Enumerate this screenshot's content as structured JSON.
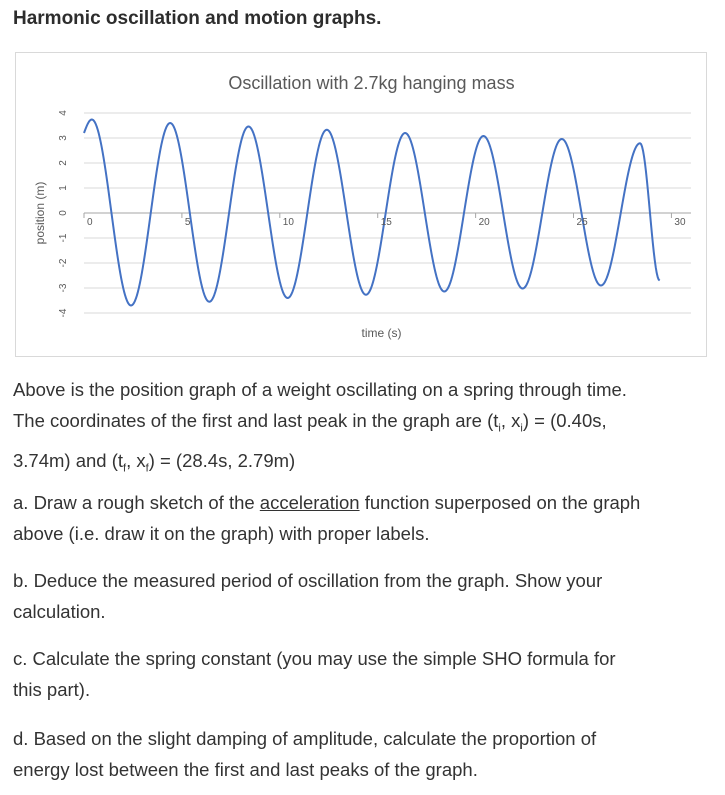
{
  "page": {
    "heading": "Harmonic oscillation and motion graphs.",
    "intro": {
      "line1": "Above is the position graph of a weight oscillating on a spring through time.",
      "line2a": "The coordinates of the first and last peak in the graph are (t",
      "sub_i1": "i",
      "sep1": ", x",
      "sub_i2": "i",
      "line2b": ") = (0.40s,",
      "line3a": "3.74m) and (t",
      "sub_f1": "f",
      "sep2": ", x",
      "sub_f2": "f",
      "line3b": ") = (28.4s, 2.79m)"
    },
    "part_a": {
      "pre": "a. Draw a rough sketch of the ",
      "underlined": "acceleration",
      "post": " function superposed on the graph",
      "line2": "above (i.e. draw it on the graph) with proper labels."
    },
    "part_b": {
      "line1": "b. Deduce the measured period of oscillation from the graph. Show your",
      "line2": "calculation."
    },
    "part_c": {
      "line1": "c. Calculate the spring constant (you may use the simple SHO formula for",
      "line2": "this part)."
    },
    "part_d": {
      "line1": "d. Based on the slight damping of amplitude, calculate the proportion of",
      "line2": "energy lost between the first and last peaks of the graph."
    }
  },
  "chart_data": {
    "type": "line",
    "title": "Oscillation with 2.7kg hanging mass",
    "xlabel": "time (s)",
    "ylabel": "position (m)",
    "xlim": [
      0,
      31
    ],
    "ylim": [
      -4,
      4
    ],
    "x_ticks": [
      "0",
      "5",
      "10",
      "15",
      "20",
      "25",
      "30"
    ],
    "y_ticks": [
      "4",
      "3",
      "2",
      "1",
      "0",
      "-1",
      "-2",
      "-3",
      "-4"
    ],
    "grid": true,
    "legend": "none",
    "line_color": "#4472c4",
    "grid_color": "#d9d9d9",
    "series": [
      {
        "x": [
          0,
          0.4,
          2.4,
          4.4,
          6.4,
          8.4,
          10.4,
          12.4,
          14.4,
          16.4,
          18.4,
          20.4,
          22.4,
          24.4,
          26.4,
          28.4,
          29.4
        ],
        "y": [
          3.2,
          3.74,
          -3.7,
          3.6,
          -3.55,
          3.46,
          -3.4,
          3.33,
          -3.27,
          3.2,
          -3.14,
          3.08,
          -3.02,
          2.96,
          -2.9,
          2.79,
          -2.7
        ]
      }
    ]
  }
}
